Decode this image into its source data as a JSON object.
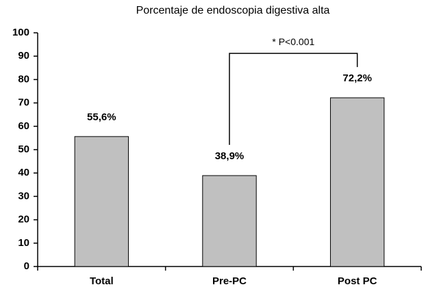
{
  "chart_data": {
    "type": "bar",
    "title": "Porcentaje de endoscopia digestiva alta",
    "categories": [
      "Total",
      "Pre-PC",
      "Post PC"
    ],
    "values": [
      55.6,
      38.9,
      72.2
    ],
    "value_labels": [
      "55,6%",
      "38,9%",
      "72,2%"
    ],
    "color": "#c0c0c0",
    "ylim": [
      0,
      100
    ],
    "yticks": [
      0,
      10,
      20,
      30,
      40,
      50,
      60,
      70,
      80,
      90,
      100
    ],
    "grid": false,
    "annotation": "* P<0.001"
  }
}
